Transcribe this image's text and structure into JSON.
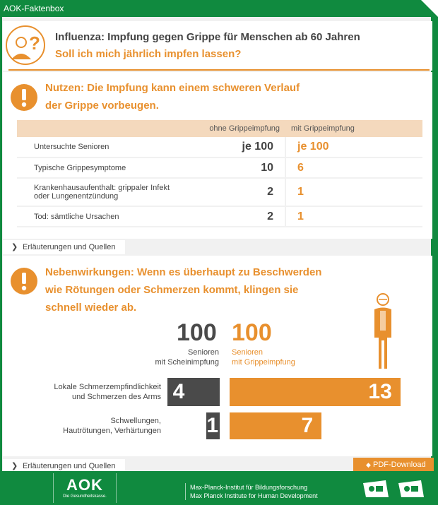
{
  "window": {
    "title": "AOK-Faktenbox"
  },
  "header": {
    "title": "Influenza: Impfung gegen Grippe für Menschen ab 60 Jahren",
    "subtitle": "Soll ich mich jährlich impfen lassen?",
    "icon": "person-question-icon"
  },
  "benefit": {
    "heading_line1": "Nutzen: Die Impfung kann einem schweren Verlauf",
    "heading_line2": "der Grippe vorbeugen.",
    "columns": [
      "ohne Grippeimpfung",
      "mit Grippeimpfung"
    ],
    "rows": [
      {
        "label": "Untersuchte Senioren",
        "without": "je 100",
        "with": "je 100"
      },
      {
        "label": "Typische Grippesymptome",
        "without": "10",
        "with": "6"
      },
      {
        "label_line1": "Krankenhausaufenthalt: grippaler Infekt",
        "label_line2": "oder Lungenentzündung",
        "without": "2",
        "with": "1"
      },
      {
        "label": "Tod: sämtliche Ursachen",
        "without": "2",
        "with": "1"
      }
    ],
    "expander": "Erläuterungen und Quellen"
  },
  "side_effects": {
    "heading_line1": "Nebenwirkungen: Wenn es überhaupt zu Beschwerden",
    "heading_line2": "wie Rötungen oder Schmerzen kommt, klingen sie",
    "heading_line3": "schnell wieder ab.",
    "group_placebo": {
      "count": "100",
      "caption_line1": "Senioren",
      "caption_line2": "mit Scheinimpfung"
    },
    "group_vaccine": {
      "count": "100",
      "caption_line1": "Senioren",
      "caption_line2": "mit Grippeimpfung"
    },
    "rows": [
      {
        "label_line1": "Lokale Schmerzempfindlichkeit",
        "label_line2": "und Schmerzen des Arms",
        "placebo": 4,
        "vaccine": 13
      },
      {
        "label_line1": "Schwellungen,",
        "label_line2": "Hautrötungen, Verhärtungen",
        "placebo": 1,
        "vaccine": 7
      }
    ],
    "expander": "Erläuterungen und Quellen"
  },
  "pdf_button": "PDF-Download",
  "footer": {
    "logo_text": "AOK",
    "logo_sub": "Die Gesundheitskasse.",
    "institute_line1": "Max-Planck-Institut für Bildungsforschung",
    "institute_line2": "Max Planck Institute for Human Development"
  },
  "colors": {
    "green": "#108a3f",
    "orange": "#e8902e",
    "dark": "#4a4a4a",
    "light_orange": "#f4d9bd"
  }
}
